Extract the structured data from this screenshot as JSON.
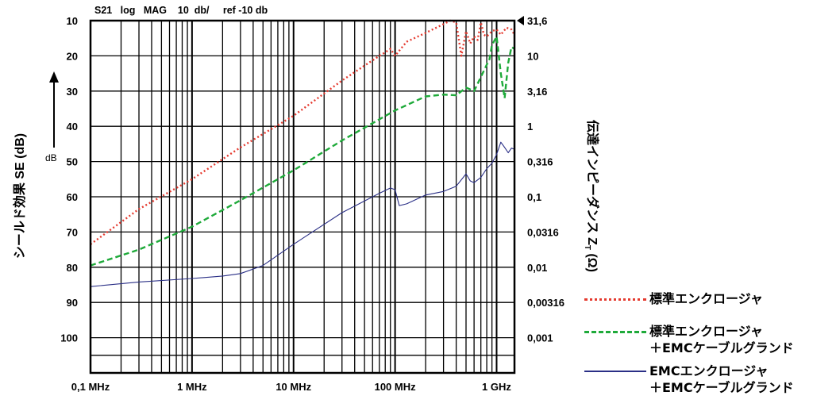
{
  "header": "S21   log   MAG    10  db/     ref -10 db",
  "chart_data": {
    "type": "line",
    "x_scale": "log",
    "x_range_hz": [
      100000,
      1500000000
    ],
    "xticks": [
      {
        "value": 100000,
        "label": "0,1 MHz"
      },
      {
        "value": 1000000,
        "label": "1 MHz"
      },
      {
        "value": 10000000,
        "label": "10 MHz"
      },
      {
        "value": 100000000,
        "label": "100 MHz"
      },
      {
        "value": 1000000000,
        "label": "1 GHz"
      }
    ],
    "ylabel": "シールド効果 SE (dB)",
    "y_unit_label": "dB",
    "ylim": [
      10,
      110
    ],
    "yticks": [
      10,
      20,
      30,
      40,
      50,
      60,
      70,
      80,
      90,
      100
    ],
    "y2label_main": "伝達インピーダンス Z",
    "y2label_sub": "T",
    "y2label_unit": " (Ω)",
    "y2ticks": [
      "31,6",
      "10",
      "3,16",
      "1",
      "0,316",
      "0,1",
      "0,0316",
      "0,01",
      "0,00316",
      "0,001"
    ],
    "grid": true,
    "series": [
      {
        "name": "標準エンクロージャ",
        "color": "#e53a2f",
        "dash": "dotted",
        "points": [
          [
            100000,
            73.5
          ],
          [
            300000,
            63.5
          ],
          [
            1000000,
            55
          ],
          [
            3000000,
            46
          ],
          [
            10000000,
            37
          ],
          [
            30000000,
            27
          ],
          [
            70000000,
            20
          ],
          [
            80000000,
            19
          ],
          [
            90000000,
            18
          ],
          [
            100000000,
            20
          ],
          [
            130000000,
            16
          ],
          [
            200000000,
            13.5
          ],
          [
            300000000,
            11
          ],
          [
            350000000,
            10
          ],
          [
            400000000,
            10.5
          ],
          [
            450000000,
            20
          ],
          [
            500000000,
            13
          ],
          [
            550000000,
            16.5
          ],
          [
            600000000,
            14.5
          ],
          [
            650000000,
            15.5
          ],
          [
            700000000,
            10.5
          ],
          [
            750000000,
            14
          ],
          [
            800000000,
            14.5
          ],
          [
            900000000,
            13
          ],
          [
            1000000000,
            12.5
          ],
          [
            1100000000,
            14
          ],
          [
            1250000000,
            12
          ],
          [
            1400000000,
            12.5
          ],
          [
            1500000000,
            14
          ]
        ]
      },
      {
        "name": "標準エンクロージャ ＋EMCケーブルグランド",
        "color": "#1faa3a",
        "dash": "dashed",
        "points": [
          [
            100000,
            79.5
          ],
          [
            300000,
            75
          ],
          [
            1000000,
            68.5
          ],
          [
            3000000,
            61
          ],
          [
            10000000,
            52.5
          ],
          [
            30000000,
            44
          ],
          [
            100000000,
            35.5
          ],
          [
            200000000,
            31.5
          ],
          [
            300000000,
            31
          ],
          [
            400000000,
            31.2
          ],
          [
            500000000,
            29
          ],
          [
            600000000,
            30
          ],
          [
            700000000,
            26
          ],
          [
            800000000,
            22.5
          ],
          [
            850000000,
            21
          ],
          [
            900000000,
            17
          ],
          [
            1000000000,
            14.5
          ],
          [
            1100000000,
            25
          ],
          [
            1200000000,
            32
          ],
          [
            1300000000,
            22
          ],
          [
            1400000000,
            17.5
          ],
          [
            1500000000,
            18
          ]
        ]
      },
      {
        "name": "EMCエンクロージャ ＋EMCケーブルグランド",
        "color": "#2a2f86",
        "dash": "solid",
        "points": [
          [
            100000,
            85.5
          ],
          [
            300000,
            84.2
          ],
          [
            1000000,
            83.2
          ],
          [
            2000000,
            82.5
          ],
          [
            3000000,
            81.8
          ],
          [
            5000000,
            79.5
          ],
          [
            10000000,
            73.5
          ],
          [
            30000000,
            64.5
          ],
          [
            70000000,
            59
          ],
          [
            90000000,
            57.5
          ],
          [
            100000000,
            58
          ],
          [
            110000000,
            62.5
          ],
          [
            130000000,
            62
          ],
          [
            200000000,
            59.5
          ],
          [
            300000000,
            58.5
          ],
          [
            400000000,
            57
          ],
          [
            500000000,
            53.5
          ],
          [
            550000000,
            55.5
          ],
          [
            600000000,
            56
          ],
          [
            700000000,
            54.5
          ],
          [
            800000000,
            52
          ],
          [
            900000000,
            50.5
          ],
          [
            1000000000,
            48
          ],
          [
            1100000000,
            44.5
          ],
          [
            1200000000,
            46
          ],
          [
            1300000000,
            47.5
          ],
          [
            1400000000,
            46.2
          ],
          [
            1500000000,
            46.5
          ]
        ]
      }
    ]
  },
  "legend": {
    "items": [
      {
        "lines": [
          "標準エンクロージャ"
        ]
      },
      {
        "lines": [
          "標準エンクロージャ",
          "＋EMCケーブルグランド"
        ]
      },
      {
        "lines": [
          "EMCエンクロージャ",
          "＋EMCケーブルグランド"
        ]
      }
    ]
  }
}
